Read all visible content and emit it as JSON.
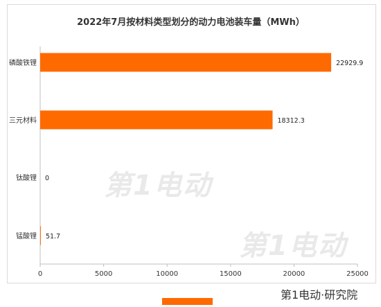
{
  "chart_data": {
    "type": "bar",
    "orientation": "horizontal",
    "title": "2022年7月按材料类型划分的动力电池装车量（MWh）",
    "categories": [
      "磷酸铁锂",
      "三元材料",
      "钛酸锂",
      "锰酸锂"
    ],
    "values": [
      22929.9,
      18312.3,
      0,
      51.7
    ],
    "data_labels": [
      "22929.9",
      "18312.3",
      "0",
      "51.7"
    ],
    "xlim": [
      0,
      25000
    ],
    "x_ticks": [
      0,
      5000,
      10000,
      15000,
      20000,
      25000
    ],
    "x_tick_labels": [
      "0",
      "5000",
      "10000",
      "15000",
      "20000",
      "25000"
    ],
    "grid": false,
    "bar_color": "#ff6a00"
  },
  "watermark": {
    "text": "第1电动",
    "footer": "第1电动·研究院"
  },
  "colors": {
    "bar": "#ff6a00",
    "axis": "#bfbfbf",
    "text": "#333333"
  }
}
